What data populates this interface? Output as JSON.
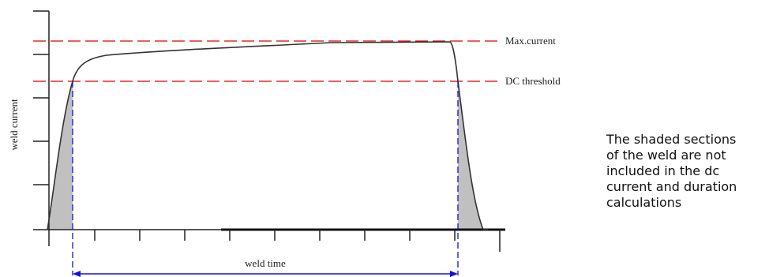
{
  "diagram": {
    "y_axis_label": "weld current",
    "max_current_label": "Max.current",
    "dc_threshold_label": "DC threshold",
    "weld_time_label": "weld time",
    "caption_lines": [
      "The shaded sections",
      "of the weld are not",
      "included in the dc",
      "current and duration",
      "calculations"
    ]
  },
  "colors": {
    "reference_lines": "#e00000",
    "weld_time_markers": "#1010e0",
    "shaded_region": "#c0c0c0",
    "curve": "#333333",
    "axes": "#222222"
  }
}
